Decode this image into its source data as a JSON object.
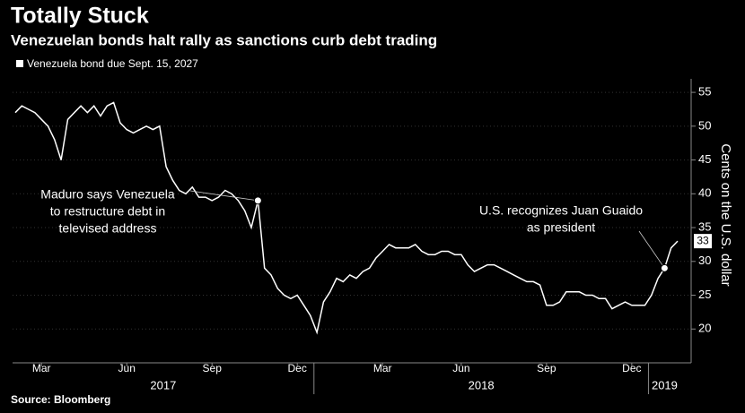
{
  "chart_data": {
    "type": "line",
    "title": "Totally Stuck",
    "subtitle": "Venezuelan bonds halt rally as sanctions curb debt trading",
    "source": "Source: Bloomberg",
    "ylabel": "Cents on the U.S. dollar",
    "categories": [
      null,
      null,
      null,
      null,
      "Mar",
      null,
      null,
      null,
      null,
      null,
      null,
      null,
      null,
      null,
      null,
      null,
      null,
      "Jun",
      null,
      null,
      null,
      null,
      null,
      null,
      null,
      null,
      null,
      null,
      null,
      null,
      "Sep",
      null,
      null,
      null,
      null,
      null,
      null,
      null,
      null,
      null,
      null,
      null,
      null,
      "Dec",
      null,
      null,
      null,
      null,
      null,
      null,
      null,
      null,
      null,
      null,
      null,
      null,
      "Mar",
      null,
      null,
      null,
      null,
      null,
      null,
      null,
      null,
      null,
      null,
      null,
      "Jun",
      null,
      null,
      null,
      null,
      null,
      null,
      null,
      null,
      null,
      null,
      null,
      null,
      "Sep",
      null,
      null,
      null,
      null,
      null,
      null,
      null,
      null,
      null,
      null,
      null,
      null,
      "Dec",
      null,
      null,
      null,
      null,
      null,
      null,
      null
    ],
    "years": [
      "2017",
      "2018",
      "2019"
    ],
    "series": [
      {
        "name": "Venezuela bond due Sept. 15, 2027",
        "color": "#ffffff",
        "values": [
          52,
          53,
          52.5,
          52,
          51,
          50,
          48,
          45,
          51,
          52,
          53,
          52,
          53,
          51.5,
          53,
          53.5,
          50.5,
          49.5,
          49,
          49.5,
          50,
          49.5,
          50,
          44,
          42,
          40.5,
          40,
          41,
          39.5,
          39.5,
          39,
          39.5,
          40.5,
          40,
          39,
          37.5,
          35,
          39,
          29,
          28,
          26,
          25,
          24.5,
          25,
          23.5,
          22,
          19.5,
          24,
          25.5,
          27.5,
          27,
          28,
          27.5,
          28.5,
          29,
          30.5,
          31.5,
          32.5,
          32,
          32,
          32,
          32.5,
          31.5,
          31,
          31,
          31.5,
          31.5,
          31,
          31,
          29.5,
          28.5,
          29,
          29.5,
          29.5,
          29,
          28.5,
          28,
          27.5,
          27,
          27,
          26.5,
          23.5,
          23.5,
          24,
          25.5,
          25.5,
          25.5,
          25,
          25,
          24.5,
          24.5,
          23,
          23.5,
          24,
          23.5,
          23.5,
          23.5,
          25,
          27.5,
          29,
          32,
          33
        ],
        "value_labels": [
          null,
          null,
          null,
          null,
          null,
          null,
          null,
          null,
          null,
          null,
          null,
          null,
          null,
          null,
          null,
          null,
          null,
          null,
          null,
          null,
          null,
          null,
          null,
          null,
          null,
          null,
          null,
          null,
          null,
          null,
          null,
          null,
          null,
          null,
          null,
          null,
          null,
          null,
          null,
          null,
          null,
          null,
          null,
          null,
          null,
          null,
          null,
          null,
          null,
          null,
          null,
          null,
          null,
          null,
          null,
          null,
          null,
          null,
          null,
          null,
          null,
          null,
          null,
          null,
          null,
          null,
          null,
          null,
          null,
          null,
          null,
          null,
          null,
          null,
          null,
          null,
          null,
          null,
          null,
          null,
          null,
          null,
          null,
          null,
          null,
          null,
          null,
          null,
          null,
          null,
          null,
          null,
          null,
          null,
          null,
          null,
          null,
          null,
          null,
          null,
          null,
          "33"
        ]
      }
    ],
    "annotations": [
      {
        "index": 37,
        "lines": [
          "Maduro says Venezuela",
          "to restructure debt in",
          "televised address"
        ]
      },
      {
        "index": 99,
        "lines": [
          "U.S. recognizes Juan Guaido",
          "as president"
        ]
      }
    ],
    "ylim": [
      15,
      57
    ],
    "yticks": [
      20,
      25,
      30,
      35,
      40,
      45,
      50,
      55
    ],
    "grid": true
  }
}
